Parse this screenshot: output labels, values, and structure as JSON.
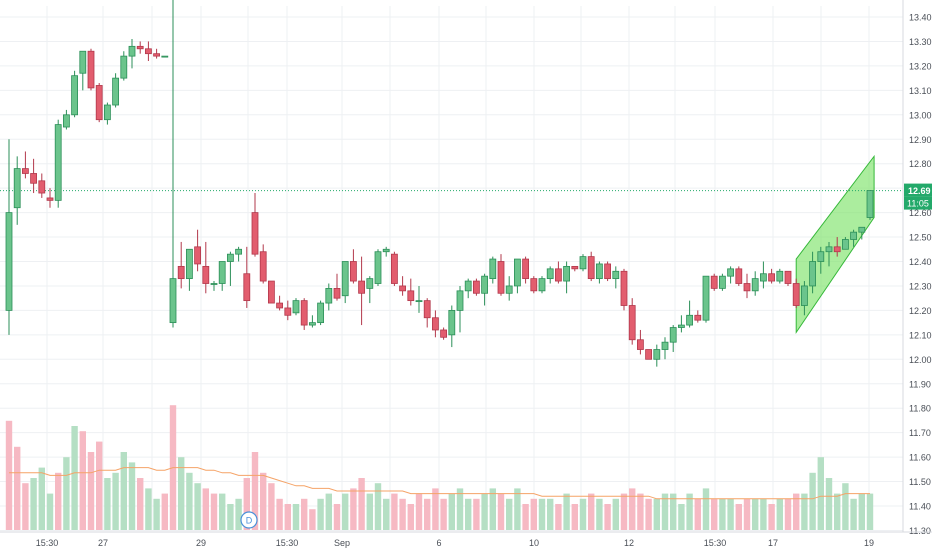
{
  "chart_data": {
    "type": "candlestick",
    "price_axis": {
      "ticks": [
        "13.40",
        "13.30",
        "13.20",
        "13.10",
        "13.00",
        "12.90",
        "12.80",
        "12.70",
        "12.60",
        "12.50",
        "12.40",
        "12.30",
        "12.20",
        "12.10",
        "12.00",
        "11.90",
        "11.80",
        "11.70",
        "11.60",
        "11.50",
        "11.40",
        "11.30"
      ],
      "range": [
        11.28,
        13.45
      ],
      "last_price_label": "12.69",
      "countdown_label": "11:05"
    },
    "time_axis": {
      "labels": [
        "15:30",
        "27",
        "29",
        "15:30",
        "Sep",
        "6",
        "10",
        "12",
        "15:30",
        "17",
        "19"
      ]
    },
    "event_marker": "D",
    "colors": {
      "up": "#2fae6a",
      "down": "#d9465a",
      "up_fill": "#6bc48c",
      "down_fill": "#e25d6e",
      "vol_up": "#b5dfc4",
      "vol_down": "#f6b9c3",
      "ma_line": "#f5a367",
      "last_price": "#23a96a",
      "channel_fill": "#7ee36a",
      "channel_stroke": "#36b83a",
      "grid": "#eef0f3"
    },
    "candles": [
      [
        12.2,
        12.9,
        12.1,
        12.6
      ],
      [
        12.62,
        12.83,
        12.55,
        12.78
      ],
      [
        12.78,
        12.85,
        12.74,
        12.76
      ],
      [
        12.76,
        12.82,
        12.68,
        12.72
      ],
      [
        12.73,
        12.76,
        12.66,
        12.68
      ],
      [
        12.66,
        12.7,
        12.62,
        12.65
      ],
      [
        12.65,
        12.98,
        12.62,
        12.96
      ],
      [
        12.95,
        13.02,
        12.94,
        13.0
      ],
      [
        13.0,
        13.18,
        12.99,
        13.16
      ],
      [
        13.17,
        13.26,
        13.1,
        13.26
      ],
      [
        13.26,
        13.27,
        13.1,
        13.11
      ],
      [
        13.12,
        13.13,
        12.97,
        12.98
      ],
      [
        12.98,
        13.05,
        12.96,
        13.04
      ],
      [
        13.04,
        13.17,
        13.03,
        13.15
      ],
      [
        13.15,
        13.26,
        13.14,
        13.24
      ],
      [
        13.24,
        13.31,
        13.19,
        13.28
      ],
      [
        13.28,
        13.3,
        13.25,
        13.27
      ],
      [
        13.27,
        13.3,
        13.22,
        13.25
      ],
      [
        13.25,
        13.27,
        13.23,
        13.24
      ],
      [
        13.24,
        13.24,
        13.24,
        13.24
      ],
      [
        12.15,
        13.98,
        12.13,
        12.33
      ],
      [
        12.38,
        12.48,
        12.29,
        12.33
      ],
      [
        12.33,
        12.45,
        12.28,
        12.45
      ],
      [
        12.46,
        12.53,
        12.36,
        12.39
      ],
      [
        12.38,
        12.48,
        12.27,
        12.31
      ],
      [
        12.31,
        12.32,
        12.28,
        12.31
      ],
      [
        12.31,
        12.4,
        12.28,
        12.4
      ],
      [
        12.4,
        12.44,
        12.3,
        12.43
      ],
      [
        12.43,
        12.46,
        12.4,
        12.45
      ],
      [
        12.35,
        12.46,
        12.21,
        12.24
      ],
      [
        12.6,
        12.68,
        12.42,
        12.43
      ],
      [
        12.44,
        12.47,
        12.31,
        12.32
      ],
      [
        12.32,
        12.32,
        12.23,
        12.23
      ],
      [
        12.23,
        12.26,
        12.2,
        12.21
      ],
      [
        12.21,
        12.24,
        12.16,
        12.18
      ],
      [
        12.19,
        12.25,
        12.18,
        12.24
      ],
      [
        12.24,
        12.25,
        12.12,
        12.14
      ],
      [
        12.14,
        12.18,
        12.13,
        12.15
      ],
      [
        12.15,
        12.24,
        12.14,
        12.23
      ],
      [
        12.23,
        12.31,
        12.2,
        12.29
      ],
      [
        12.29,
        12.35,
        12.24,
        12.25
      ],
      [
        12.26,
        12.4,
        12.23,
        12.4
      ],
      [
        12.4,
        12.45,
        12.31,
        12.32
      ],
      [
        12.32,
        12.42,
        12.14,
        12.27
      ],
      [
        12.29,
        12.34,
        12.23,
        12.33
      ],
      [
        12.31,
        12.45,
        12.3,
        12.44
      ],
      [
        12.44,
        12.46,
        12.42,
        12.45
      ],
      [
        12.43,
        12.44,
        12.3,
        12.31
      ],
      [
        12.3,
        12.34,
        12.26,
        12.28
      ],
      [
        12.28,
        12.33,
        12.22,
        12.24
      ],
      [
        12.24,
        12.3,
        12.19,
        12.24
      ],
      [
        12.24,
        12.25,
        12.13,
        12.17
      ],
      [
        12.17,
        12.2,
        12.09,
        12.12
      ],
      [
        12.12,
        12.13,
        12.08,
        12.09
      ],
      [
        12.1,
        12.22,
        12.05,
        12.2
      ],
      [
        12.2,
        12.3,
        12.11,
        12.28
      ],
      [
        12.28,
        12.33,
        12.25,
        12.32
      ],
      [
        12.32,
        12.33,
        12.26,
        12.27
      ],
      [
        12.27,
        12.35,
        12.22,
        12.34
      ],
      [
        12.33,
        12.42,
        12.31,
        12.41
      ],
      [
        12.4,
        12.43,
        12.26,
        12.27
      ],
      [
        12.27,
        12.34,
        12.24,
        12.3
      ],
      [
        12.3,
        12.41,
        12.27,
        12.41
      ],
      [
        12.41,
        12.42,
        12.31,
        12.33
      ],
      [
        12.33,
        12.34,
        12.27,
        12.28
      ],
      [
        12.28,
        12.34,
        12.27,
        12.33
      ],
      [
        12.33,
        12.38,
        12.31,
        12.37
      ],
      [
        12.37,
        12.4,
        12.31,
        12.32
      ],
      [
        12.32,
        12.4,
        12.27,
        12.38
      ],
      [
        12.38,
        12.38,
        12.36,
        12.37
      ],
      [
        12.37,
        12.43,
        12.36,
        12.42
      ],
      [
        12.42,
        12.44,
        12.32,
        12.33
      ],
      [
        12.33,
        12.4,
        12.31,
        12.39
      ],
      [
        12.39,
        12.4,
        12.32,
        12.33
      ],
      [
        12.33,
        12.38,
        12.29,
        12.36
      ],
      [
        12.36,
        12.37,
        12.2,
        12.22
      ],
      [
        12.22,
        12.25,
        12.06,
        12.08
      ],
      [
        12.08,
        12.12,
        12.02,
        12.04
      ],
      [
        12.04,
        12.04,
        12.0,
        12.0
      ],
      [
        12.0,
        12.06,
        11.97,
        12.04
      ],
      [
        12.04,
        12.09,
        12.0,
        12.07
      ],
      [
        12.07,
        12.14,
        12.03,
        12.13
      ],
      [
        12.13,
        12.18,
        12.11,
        12.14
      ],
      [
        12.14,
        12.24,
        12.13,
        12.18
      ],
      [
        12.18,
        12.2,
        12.15,
        12.16
      ],
      [
        12.16,
        12.34,
        12.15,
        12.34
      ],
      [
        12.34,
        12.35,
        12.28,
        12.29
      ],
      [
        12.29,
        12.35,
        12.28,
        12.34
      ],
      [
        12.34,
        12.38,
        12.31,
        12.37
      ],
      [
        12.37,
        12.38,
        12.3,
        12.31
      ],
      [
        12.31,
        12.35,
        12.25,
        12.28
      ],
      [
        12.28,
        12.36,
        12.26,
        12.33
      ],
      [
        12.32,
        12.4,
        12.29,
        12.35
      ],
      [
        12.35,
        12.37,
        12.31,
        12.32
      ],
      [
        12.32,
        12.37,
        12.31,
        12.36
      ],
      [
        12.36,
        12.36,
        12.3,
        12.31
      ],
      [
        12.31,
        12.33,
        12.21,
        12.22
      ],
      [
        12.22,
        12.32,
        12.18,
        12.3
      ],
      [
        12.3,
        12.44,
        12.27,
        12.4
      ],
      [
        12.4,
        12.46,
        12.35,
        12.44
      ],
      [
        12.44,
        12.48,
        12.38,
        12.46
      ],
      [
        12.46,
        12.5,
        12.42,
        12.44
      ],
      [
        12.45,
        12.5,
        12.45,
        12.49
      ],
      [
        12.49,
        12.53,
        12.46,
        12.52
      ],
      [
        12.52,
        12.54,
        12.49,
        12.54
      ],
      [
        12.58,
        12.69,
        12.57,
        12.69
      ]
    ],
    "volumes": [
      [
        42,
        "down"
      ],
      [
        32,
        "down"
      ],
      [
        18,
        "down"
      ],
      [
        20,
        "up"
      ],
      [
        24,
        "up"
      ],
      [
        14,
        "up"
      ],
      [
        22,
        "down"
      ],
      [
        28,
        "up"
      ],
      [
        40,
        "up"
      ],
      [
        38,
        "down"
      ],
      [
        30,
        "down"
      ],
      [
        34,
        "down"
      ],
      [
        20,
        "up"
      ],
      [
        22,
        "up"
      ],
      [
        30,
        "up"
      ],
      [
        26,
        "up"
      ],
      [
        20,
        "down"
      ],
      [
        16,
        "up"
      ],
      [
        12,
        "up"
      ],
      [
        14,
        "down"
      ],
      [
        48,
        "down"
      ],
      [
        28,
        "up"
      ],
      [
        22,
        "up"
      ],
      [
        18,
        "up"
      ],
      [
        16,
        "down"
      ],
      [
        14,
        "down"
      ],
      [
        14,
        "up"
      ],
      [
        10,
        "up"
      ],
      [
        12,
        "up"
      ],
      [
        20,
        "down"
      ],
      [
        30,
        "down"
      ],
      [
        22,
        "down"
      ],
      [
        18,
        "down"
      ],
      [
        12,
        "down"
      ],
      [
        10,
        "down"
      ],
      [
        10,
        "up"
      ],
      [
        12,
        "down"
      ],
      [
        8,
        "down"
      ],
      [
        12,
        "up"
      ],
      [
        14,
        "up"
      ],
      [
        10,
        "down"
      ],
      [
        14,
        "up"
      ],
      [
        16,
        "down"
      ],
      [
        20,
        "down"
      ],
      [
        14,
        "up"
      ],
      [
        18,
        "up"
      ],
      [
        12,
        "up"
      ],
      [
        14,
        "down"
      ],
      [
        12,
        "down"
      ],
      [
        10,
        "down"
      ],
      [
        14,
        "down"
      ],
      [
        12,
        "down"
      ],
      [
        16,
        "down"
      ],
      [
        12,
        "down"
      ],
      [
        14,
        "up"
      ],
      [
        16,
        "up"
      ],
      [
        12,
        "up"
      ],
      [
        12,
        "down"
      ],
      [
        14,
        "up"
      ],
      [
        16,
        "up"
      ],
      [
        14,
        "down"
      ],
      [
        12,
        "up"
      ],
      [
        16,
        "up"
      ],
      [
        10,
        "down"
      ],
      [
        12,
        "down"
      ],
      [
        12,
        "up"
      ],
      [
        12,
        "up"
      ],
      [
        10,
        "down"
      ],
      [
        14,
        "up"
      ],
      [
        10,
        "down"
      ],
      [
        12,
        "up"
      ],
      [
        14,
        "down"
      ],
      [
        12,
        "up"
      ],
      [
        10,
        "down"
      ],
      [
        12,
        "up"
      ],
      [
        14,
        "down"
      ],
      [
        16,
        "down"
      ],
      [
        14,
        "down"
      ],
      [
        12,
        "down"
      ],
      [
        12,
        "up"
      ],
      [
        14,
        "up"
      ],
      [
        14,
        "up"
      ],
      [
        10,
        "up"
      ],
      [
        14,
        "up"
      ],
      [
        12,
        "down"
      ],
      [
        16,
        "up"
      ],
      [
        12,
        "down"
      ],
      [
        12,
        "up"
      ],
      [
        12,
        "up"
      ],
      [
        10,
        "down"
      ],
      [
        12,
        "down"
      ],
      [
        12,
        "up"
      ],
      [
        12,
        "up"
      ],
      [
        10,
        "down"
      ],
      [
        12,
        "up"
      ],
      [
        12,
        "down"
      ],
      [
        14,
        "down"
      ],
      [
        14,
        "up"
      ],
      [
        22,
        "up"
      ],
      [
        28,
        "up"
      ],
      [
        20,
        "up"
      ],
      [
        14,
        "up"
      ],
      [
        18,
        "up"
      ],
      [
        12,
        "up"
      ],
      [
        14,
        "up"
      ],
      [
        14,
        "up"
      ]
    ],
    "moving_average": [
      22,
      22,
      22,
      22,
      22,
      21,
      21,
      21,
      22,
      22,
      22,
      23,
      23,
      23,
      24,
      24,
      24,
      24,
      23,
      23,
      24,
      24,
      24,
      24,
      23,
      23,
      22,
      22,
      21,
      21,
      21,
      21,
      20,
      19,
      18,
      17,
      17,
      16,
      16,
      16,
      15,
      15,
      15,
      15,
      15,
      15,
      15,
      15,
      15,
      14,
      14,
      14,
      14,
      14,
      14,
      14,
      14,
      14,
      14,
      14,
      14,
      14,
      14,
      14,
      14,
      13,
      13,
      13,
      13,
      13,
      13,
      13,
      13,
      13,
      13,
      13,
      13,
      13,
      13,
      12,
      12,
      12,
      12,
      12,
      12,
      12,
      12,
      12,
      12,
      12,
      12,
      12,
      12,
      12,
      12,
      12,
      12,
      12,
      12,
      13,
      13,
      13,
      14,
      14,
      14,
      14
    ],
    "channel": {
      "lower_start": [
        12.11,
        96
      ],
      "lower_end": [
        12.58,
        105.5
      ],
      "upper_start": [
        12.41,
        96
      ],
      "upper_end": [
        12.83,
        105.5
      ]
    },
    "grid": true
  }
}
